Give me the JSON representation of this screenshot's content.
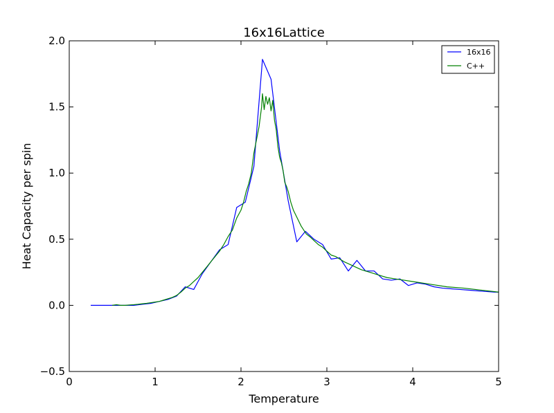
{
  "chart_data": {
    "type": "line",
    "title": "16x16Lattice",
    "xlabel": "Temperature",
    "ylabel": "Heat Capacity per spin",
    "xlim": [
      0,
      5
    ],
    "ylim": [
      -0.5,
      2.0
    ],
    "x_ticks": [
      0,
      1,
      2,
      3,
      4,
      5
    ],
    "x_tick_labels": [
      "0",
      "1",
      "2",
      "3",
      "4",
      "5"
    ],
    "y_ticks": [
      -0.5,
      0.0,
      0.5,
      1.0,
      1.5,
      2.0
    ],
    "y_tick_labels": [
      "−0.5",
      "0.0",
      "0.5",
      "1.0",
      "1.5",
      "2.0"
    ],
    "grid": false,
    "legend_position": "top-right",
    "series": [
      {
        "name": "16x16",
        "color": "#0000ff",
        "x": [
          0.25,
          0.35,
          0.45,
          0.55,
          0.65,
          0.75,
          0.85,
          0.95,
          1.05,
          1.15,
          1.25,
          1.35,
          1.45,
          1.55,
          1.65,
          1.75,
          1.85,
          1.95,
          2.05,
          2.15,
          2.25,
          2.35,
          2.45,
          2.55,
          2.65,
          2.75,
          2.85,
          2.95,
          3.05,
          3.15,
          3.25,
          3.35,
          3.45,
          3.55,
          3.65,
          3.75,
          3.85,
          3.95,
          4.05,
          4.15,
          4.25,
          4.35,
          4.45,
          4.55,
          4.65,
          4.75,
          4.85,
          4.95,
          5.0
        ],
        "y": [
          0.0,
          0.0,
          0.0,
          0.0,
          0.0,
          0.0,
          0.008,
          0.015,
          0.03,
          0.045,
          0.07,
          0.14,
          0.12,
          0.24,
          0.33,
          0.42,
          0.46,
          0.74,
          0.78,
          1.05,
          1.86,
          1.71,
          1.17,
          0.79,
          0.48,
          0.56,
          0.5,
          0.46,
          0.35,
          0.36,
          0.26,
          0.34,
          0.26,
          0.26,
          0.2,
          0.19,
          0.2,
          0.15,
          0.17,
          0.16,
          0.14,
          0.13,
          0.125,
          0.12,
          0.115,
          0.11,
          0.105,
          0.1,
          0.1
        ]
      },
      {
        "name": "C++",
        "color": "#008000",
        "x": [
          0.5,
          0.55,
          0.6,
          0.65,
          0.7,
          0.75,
          0.8,
          0.85,
          0.9,
          0.95,
          1.0,
          1.05,
          1.1,
          1.15,
          1.2,
          1.25,
          1.3,
          1.35,
          1.4,
          1.45,
          1.5,
          1.55,
          1.6,
          1.65,
          1.7,
          1.75,
          1.8,
          1.85,
          1.9,
          1.95,
          2.0,
          2.03,
          2.06,
          2.09,
          2.12,
          2.15,
          2.18,
          2.21,
          2.24,
          2.25,
          2.27,
          2.29,
          2.31,
          2.33,
          2.35,
          2.37,
          2.39,
          2.41,
          2.43,
          2.45,
          2.47,
          2.49,
          2.51,
          2.53,
          2.55,
          2.58,
          2.61,
          2.64,
          2.67,
          2.7,
          2.73,
          2.76,
          2.8,
          2.85,
          2.9,
          2.95,
          3.0,
          3.05,
          3.1,
          3.15,
          3.2,
          3.3,
          3.4,
          3.5,
          3.6,
          3.7,
          3.8,
          3.9,
          4.0,
          4.2,
          4.4,
          4.6,
          4.8,
          5.0
        ],
        "y": [
          0.0,
          0.005,
          0.0,
          0.0,
          0.003,
          0.005,
          0.008,
          0.012,
          0.015,
          0.02,
          0.025,
          0.03,
          0.04,
          0.05,
          0.06,
          0.075,
          0.1,
          0.13,
          0.15,
          0.18,
          0.21,
          0.25,
          0.29,
          0.33,
          0.37,
          0.41,
          0.46,
          0.52,
          0.57,
          0.66,
          0.72,
          0.78,
          0.86,
          0.92,
          1.0,
          1.15,
          1.25,
          1.35,
          1.5,
          1.6,
          1.48,
          1.58,
          1.52,
          1.57,
          1.47,
          1.55,
          1.4,
          1.33,
          1.2,
          1.12,
          1.08,
          1.02,
          0.93,
          0.9,
          0.86,
          0.78,
          0.72,
          0.68,
          0.64,
          0.6,
          0.57,
          0.54,
          0.52,
          0.49,
          0.46,
          0.44,
          0.41,
          0.38,
          0.37,
          0.35,
          0.33,
          0.3,
          0.27,
          0.25,
          0.23,
          0.21,
          0.2,
          0.19,
          0.18,
          0.16,
          0.14,
          0.13,
          0.115,
          0.1
        ]
      }
    ]
  }
}
